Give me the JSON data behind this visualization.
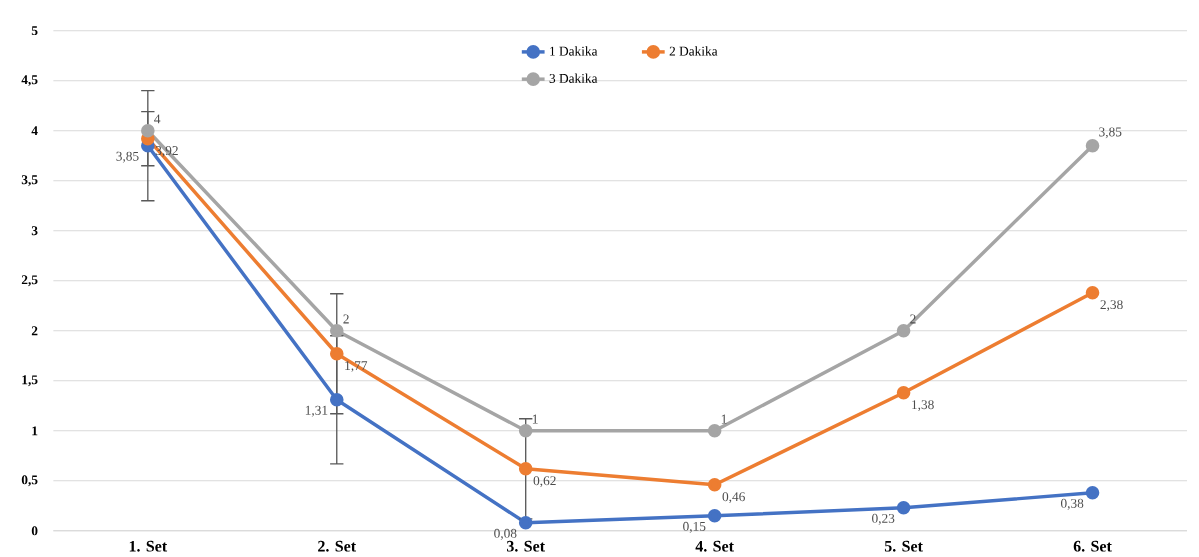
{
  "chart_data": {
    "type": "line",
    "categories": [
      "1. Set",
      "2. Set",
      "3. Set",
      "4. Set",
      "5. Set",
      "6. Set"
    ],
    "series": [
      {
        "name": "1 Dakika",
        "color": "#4472c4",
        "values": [
          3.85,
          1.31,
          0.08,
          0.15,
          0.23,
          0.38
        ],
        "value_labels": [
          "3,85",
          "1,31",
          "0,08",
          "0,15",
          "0,23",
          "0,38"
        ],
        "errors": [
          0.55,
          0.64,
          null,
          null,
          null,
          null
        ]
      },
      {
        "name": "2 Dakika",
        "color": "#ed7d31",
        "values": [
          3.92,
          1.77,
          0.62,
          0.46,
          1.38,
          2.38
        ],
        "value_labels": [
          "3,92",
          "1,77",
          "0,62",
          "0,46",
          "1,38",
          "2,38"
        ],
        "errors": [
          0.27,
          0.6,
          0.5,
          null,
          null,
          null
        ]
      },
      {
        "name": "3 Dakika",
        "color": "#a5a5a5",
        "values": [
          4,
          2,
          1,
          1,
          2,
          3.85
        ],
        "value_labels": [
          "4",
          "2",
          "1",
          "1",
          "2",
          "3,85"
        ]
      }
    ],
    "ylim": [
      0,
      5
    ],
    "yticks": [
      0,
      {
        "value": 0.5,
        "label": "0,5"
      },
      1,
      {
        "value": 1.5,
        "label": "1,5"
      },
      2,
      {
        "value": 2.5,
        "label": "2,5"
      },
      3,
      {
        "value": 3.5,
        "label": "3,5"
      },
      4,
      {
        "value": 4.5,
        "label": "4,5"
      },
      5
    ],
    "grid": "y",
    "legend": "top",
    "marker": "circle",
    "line_style": "solid"
  }
}
